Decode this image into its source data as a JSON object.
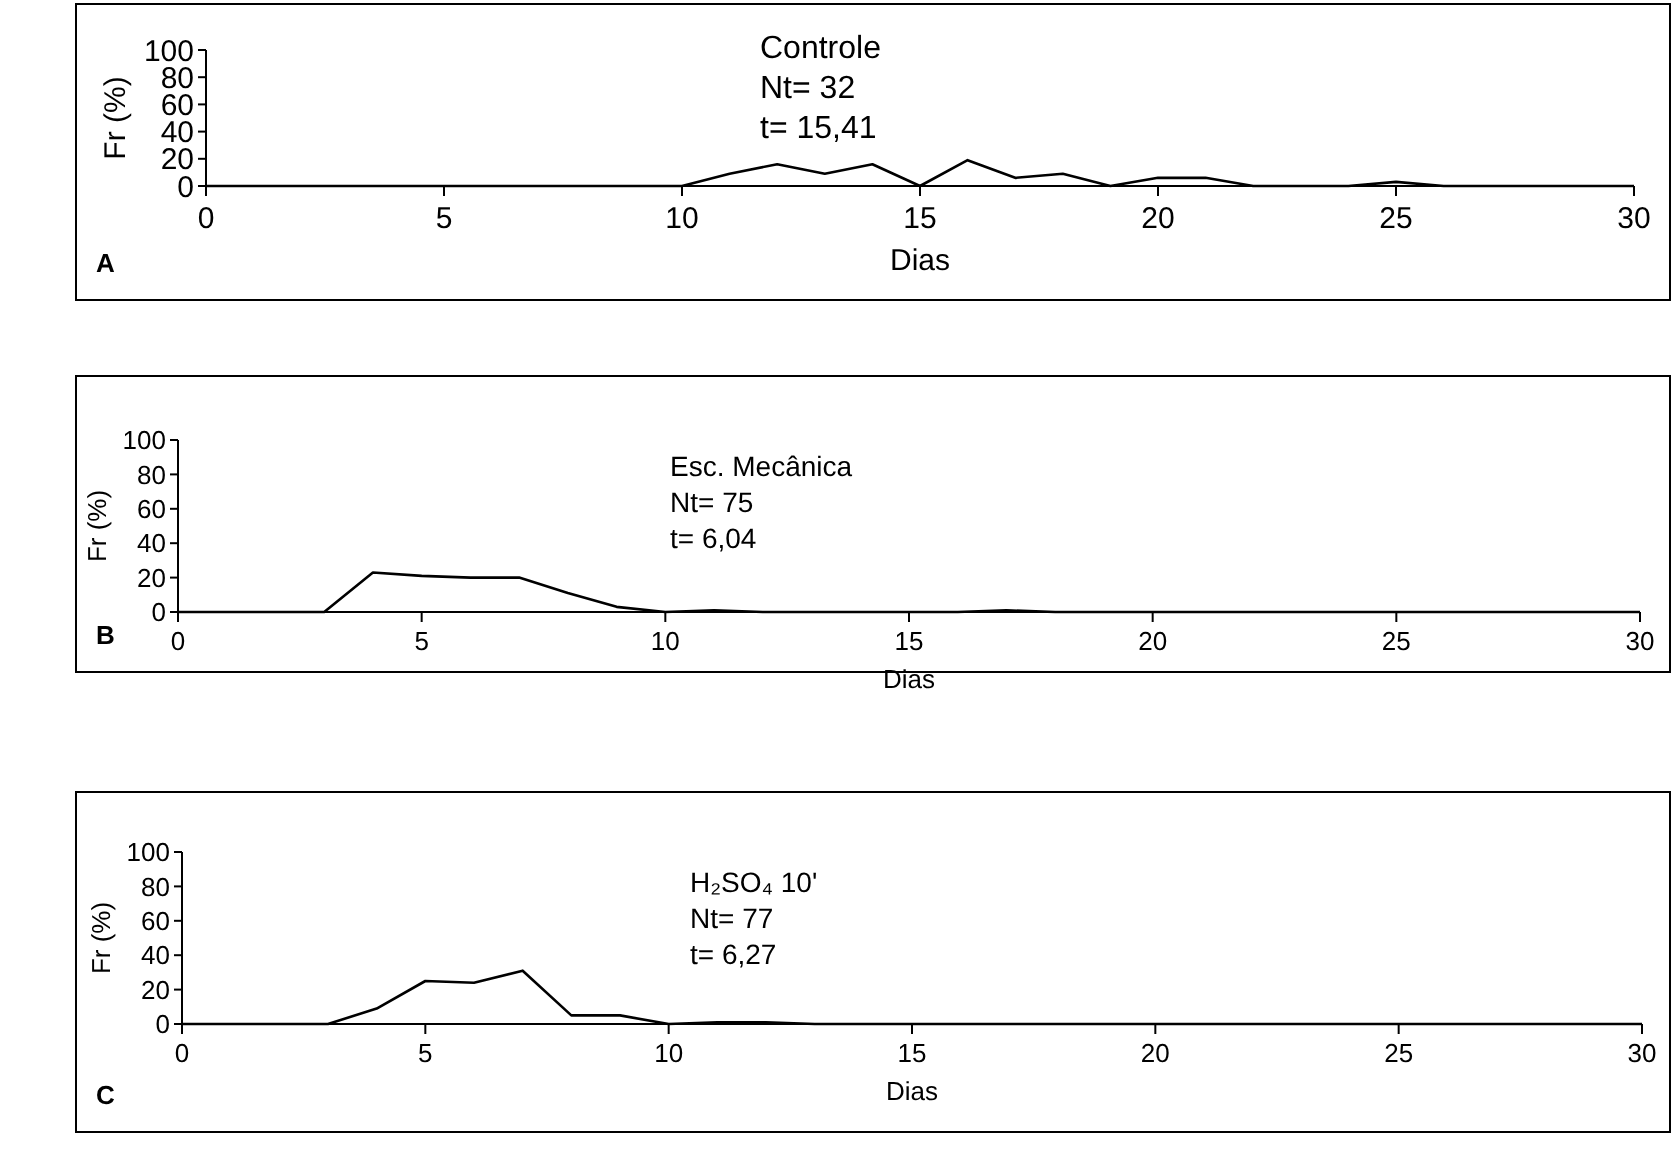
{
  "chart_data": [
    {
      "type": "line",
      "xlabel": "Dias",
      "ylabel": "Fr (%)",
      "annotations": [
        "A",
        "Controle",
        "Nt= 32",
        "t= 15,41"
      ],
      "x": [
        0,
        1,
        2,
        3,
        4,
        5,
        6,
        7,
        8,
        9,
        10,
        11,
        12,
        13,
        14,
        15,
        16,
        17,
        18,
        19,
        20,
        21,
        22,
        23,
        24,
        25,
        26,
        27,
        28,
        29,
        30
      ],
      "series": [
        {
          "color": "#000000",
          "values": [
            0,
            0,
            0,
            0,
            0,
            0,
            0,
            0,
            0,
            0,
            0,
            9,
            16,
            9,
            16,
            0,
            19,
            6,
            9,
            0,
            6,
            6,
            0,
            0,
            0,
            3,
            0,
            0,
            0,
            0,
            0
          ]
        }
      ],
      "xlim": [
        0,
        30
      ],
      "xticks": [
        0,
        5,
        10,
        15,
        20,
        25,
        30
      ],
      "ylim": [
        0,
        100
      ],
      "yticks": [
        0,
        20,
        40,
        60,
        80,
        100
      ]
    },
    {
      "type": "line",
      "xlabel": "Dias",
      "ylabel": "Fr (%)",
      "annotations": [
        "B",
        "Esc. Mecânica",
        "Nt= 75",
        "t= 6,04"
      ],
      "x": [
        0,
        1,
        2,
        3,
        4,
        5,
        6,
        7,
        8,
        9,
        10,
        11,
        12,
        13,
        14,
        15,
        16,
        17,
        18,
        19,
        20,
        21,
        22,
        23,
        24,
        25,
        26,
        27,
        28,
        29,
        30
      ],
      "series": [
        {
          "color": "#000000",
          "values": [
            0,
            0,
            0,
            0,
            23,
            21,
            20,
            20,
            11,
            3,
            0,
            1,
            0,
            0,
            0,
            0,
            0,
            1,
            0,
            0,
            0,
            0,
            0,
            0,
            0,
            0,
            0,
            0,
            0,
            0,
            0
          ]
        }
      ],
      "xlim": [
        0,
        30
      ],
      "xticks": [
        0,
        5,
        10,
        15,
        20,
        25,
        30
      ],
      "ylim": [
        0,
        100
      ],
      "yticks": [
        0,
        20,
        40,
        60,
        80,
        100
      ]
    },
    {
      "type": "line",
      "xlabel": "Dias",
      "ylabel": "Fr (%)",
      "annotations": [
        "C",
        "H₂SO₄ 10'",
        "Nt= 77",
        "t= 6,27"
      ],
      "x": [
        0,
        1,
        2,
        3,
        4,
        5,
        6,
        7,
        8,
        9,
        10,
        11,
        12,
        13,
        14,
        15,
        16,
        17,
        18,
        19,
        20,
        21,
        22,
        23,
        24,
        25,
        26,
        27,
        28,
        29,
        30
      ],
      "series": [
        {
          "color": "#000000",
          "values": [
            0,
            0,
            0,
            0,
            9,
            25,
            24,
            31,
            5,
            5,
            0,
            1,
            1,
            0,
            0,
            0,
            0,
            0,
            0,
            0,
            0,
            0,
            0,
            0,
            0,
            0,
            0,
            0,
            0,
            0,
            0
          ]
        }
      ],
      "xlim": [
        0,
        30
      ],
      "xticks": [
        0,
        5,
        10,
        15,
        20,
        25,
        30
      ],
      "ylim": [
        0,
        100
      ],
      "yticks": [
        0,
        20,
        40,
        60,
        80,
        100
      ]
    }
  ]
}
